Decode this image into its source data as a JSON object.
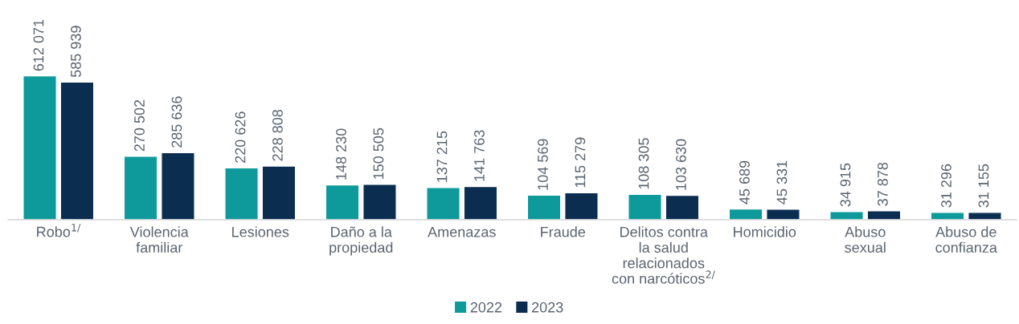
{
  "chart_data": {
    "type": "bar",
    "categories": [
      "Robo$^{1/}$",
      "Violencia\nfamiliar",
      "Lesiones",
      "Daño a la\npropiedad",
      "Amenazas",
      "Fraude",
      "Delitos contra\nla salud\nrelacionados\ncon narcóticos$^{2/}$",
      "Homicidio",
      "Abuso\nsexual",
      "Abuso de\nconfianza"
    ],
    "series": [
      {
        "name": "2022",
        "color": "#0e9a9a",
        "values": [
          612071,
          270502,
          220626,
          148230,
          137215,
          104569,
          108305,
          45689,
          34915,
          31296
        ],
        "value_labels": [
          "612 071",
          "270 502",
          "220 626",
          "148 230",
          "137 215",
          "104 569",
          "108 305",
          "45 689",
          "34 915",
          "31 296"
        ]
      },
      {
        "name": "2023",
        "color": "#0a2d50",
        "values": [
          585939,
          285636,
          228808,
          150505,
          141763,
          115279,
          103630,
          45331,
          37878,
          31155
        ],
        "value_labels": [
          "585 939",
          "285 636",
          "228 808",
          "150 505",
          "141 763",
          "115 279",
          "103 630",
          "45 331",
          "37 878",
          "31 155"
        ]
      }
    ],
    "legend": "bottom",
    "grid": false
  }
}
